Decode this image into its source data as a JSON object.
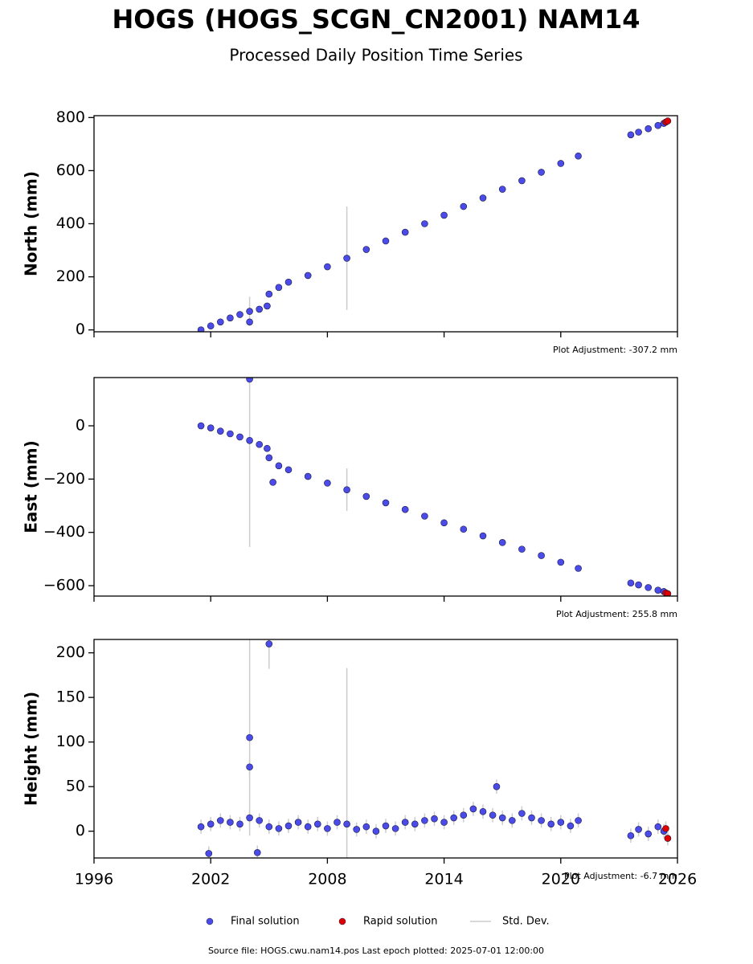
{
  "title": "HOGS (HOGS_SCGN_CN2001) NAM14",
  "subtitle": "Processed Daily Position Time Series",
  "footer": "Source file: HOGS.cwu.nam14.pos  Last epoch plotted: 2025-07-01 12:00:00",
  "legend": [
    {
      "name": "Final solution",
      "color": "#4b4bea"
    },
    {
      "name": "Rapid solution",
      "color": "#e00000"
    },
    {
      "name": "Std. Dev.",
      "color": "#cccccc"
    }
  ],
  "chart_data": [
    {
      "type": "scatter",
      "ylabel": "North (mm)",
      "annotation": "Plot Adjustment: -307.2 mm",
      "xlim": [
        1996,
        2026
      ],
      "xticks": [
        1996,
        2002,
        2008,
        2014,
        2020,
        2026
      ],
      "ylim": [
        -7,
        807
      ],
      "yticks": [
        0,
        200,
        400,
        600,
        800
      ],
      "series": [
        {
          "color": "#4b4bea",
          "x": [
            2001.5,
            2002,
            2002.5,
            2003,
            2003.5,
            2004,
            2004.5,
            2004.9,
            2005,
            2005.5,
            2006,
            2007,
            2008,
            2009,
            2010,
            2011,
            2012,
            2013,
            2014,
            2015,
            2016,
            2017,
            2018,
            2019,
            2020,
            2020.9,
            2023.6,
            2024,
            2024.5,
            2025,
            2025.3,
            2004
          ],
          "values": [
            0,
            15,
            30,
            45,
            58,
            70,
            78,
            90,
            135,
            160,
            180,
            205,
            238,
            270,
            303,
            335,
            368,
            400,
            432,
            465,
            497,
            530,
            562,
            594,
            627,
            655,
            735,
            745,
            758,
            770,
            778,
            30
          ],
          "errors": [
            3,
            3,
            3,
            3,
            3,
            55,
            3,
            3,
            3,
            3,
            3,
            3,
            3,
            195,
            3,
            3,
            3,
            3,
            3,
            3,
            3,
            3,
            3,
            3,
            3,
            3,
            3,
            3,
            3,
            3,
            3,
            3
          ]
        },
        {
          "color": "#e00000",
          "x": [
            2025.4,
            2025.5
          ],
          "values": [
            783,
            787
          ],
          "errors": [
            3,
            3
          ]
        }
      ]
    },
    {
      "type": "scatter",
      "ylabel": "East (mm)",
      "annotation": "Plot Adjustment: 255.8 mm",
      "xlim": [
        1996,
        2026
      ],
      "xticks": [
        1996,
        2002,
        2008,
        2014,
        2020,
        2026
      ],
      "ylim": [
        -639,
        181
      ],
      "yticks": [
        {
          "value": -600,
          "label": "−600"
        },
        {
          "value": -400,
          "label": "−400"
        },
        {
          "value": -200,
          "label": "−200"
        },
        0
      ],
      "series": [
        {
          "color": "#4b4bea",
          "x": [
            2001.5,
            2002,
            2002.5,
            2003,
            2003.5,
            2004,
            2004.5,
            2004.9,
            2005,
            2005.5,
            2006,
            2007,
            2008,
            2009,
            2010,
            2011,
            2012,
            2013,
            2014,
            2015,
            2016,
            2017,
            2018,
            2019,
            2020,
            2020.9,
            2023.6,
            2024,
            2024.5,
            2025,
            2025.3,
            2004,
            2005.2
          ],
          "values": [
            0,
            -8,
            -20,
            -30,
            -42,
            -55,
            -70,
            -85,
            -120,
            -150,
            -165,
            -190,
            -215,
            -240,
            -265,
            -289,
            -314,
            -339,
            -364,
            -388,
            -413,
            -438,
            -463,
            -487,
            -512,
            -535,
            -590,
            -597,
            -607,
            -617,
            -622,
            175,
            -212
          ],
          "errors": [
            3,
            3,
            3,
            3,
            3,
            400,
            3,
            3,
            3,
            3,
            3,
            3,
            3,
            80,
            3,
            3,
            3,
            3,
            3,
            3,
            3,
            3,
            3,
            3,
            3,
            3,
            3,
            3,
            3,
            3,
            3,
            3,
            3
          ]
        },
        {
          "color": "#e00000",
          "x": [
            2025.4,
            2025.5
          ],
          "values": [
            -627,
            -630
          ],
          "errors": [
            3,
            3
          ]
        }
      ]
    },
    {
      "type": "scatter",
      "ylabel": "Height (mm)",
      "annotation": "Plot Adjustment: -6.7 mm",
      "xlim": [
        1996,
        2026
      ],
      "xticks": [
        1996,
        2002,
        2008,
        2014,
        2020,
        2026
      ],
      "xticklabels": true,
      "ylim": [
        -30,
        215
      ],
      "yticks": [
        0,
        50,
        100,
        150,
        200
      ],
      "series": [
        {
          "color": "#4b4bea",
          "x": [
            2001.5,
            2002,
            2002.5,
            2003,
            2003.5,
            2004,
            2004.5,
            2005,
            2005.5,
            2006,
            2006.5,
            2007,
            2007.5,
            2008,
            2008.5,
            2009,
            2009.5,
            2010,
            2010.5,
            2011,
            2011.5,
            2012,
            2012.5,
            2013,
            2013.5,
            2014,
            2014.5,
            2015,
            2015.5,
            2016,
            2016.5,
            2017,
            2017.5,
            2018,
            2018.5,
            2019,
            2019.5,
            2020,
            2020.5,
            2020.9,
            2023.6,
            2024,
            2024.5,
            2025,
            2025.3,
            2004,
            2004,
            2005,
            2004.4,
            2001.9,
            2016.7
          ],
          "values": [
            5,
            8,
            12,
            10,
            8,
            15,
            12,
            5,
            3,
            6,
            10,
            5,
            8,
            3,
            10,
            8,
            2,
            5,
            0,
            6,
            3,
            10,
            8,
            12,
            14,
            10,
            15,
            18,
            25,
            22,
            18,
            15,
            12,
            20,
            15,
            12,
            8,
            10,
            6,
            12,
            -5,
            2,
            -3,
            5,
            0,
            105,
            72,
            210,
            -24,
            -25,
            50
          ],
          "errors": [
            8,
            8,
            8,
            8,
            8,
            8,
            8,
            8,
            8,
            8,
            8,
            8,
            8,
            8,
            8,
            175,
            8,
            8,
            8,
            8,
            8,
            8,
            8,
            8,
            8,
            8,
            8,
            8,
            8,
            8,
            8,
            8,
            8,
            8,
            8,
            8,
            8,
            8,
            8,
            8,
            8,
            8,
            8,
            8,
            8,
            110,
            8,
            28,
            8,
            8,
            8
          ]
        },
        {
          "color": "#e00000",
          "x": [
            2025.4,
            2025.5
          ],
          "values": [
            3,
            -8
          ],
          "errors": [
            8,
            8
          ]
        }
      ]
    }
  ]
}
